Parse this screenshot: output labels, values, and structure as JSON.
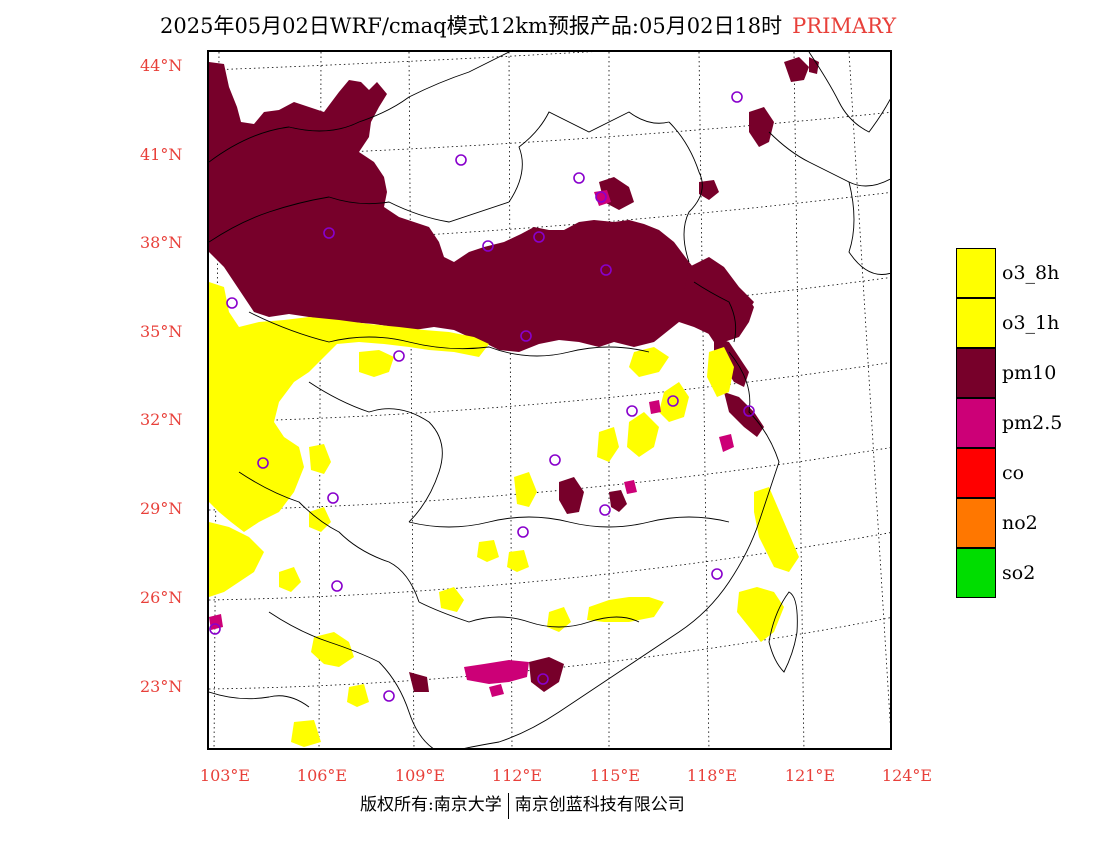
{
  "title": {
    "main": "2025年05月02日WRF/cmaq模式12km预报产品:05月02日18时",
    "tag": "PRIMARY"
  },
  "colors": {
    "o3_8h": "#ffff00",
    "o3_1h": "#ffff00",
    "pm10": "#77002a",
    "pm2_5": "#cc0077",
    "co": "#ff0000",
    "no2": "#ff7700",
    "so2": "#00dd00",
    "label_red": "#e8403a",
    "station": "#8800cc"
  },
  "axes": {
    "lat_labels": [
      "44°N",
      "41°N",
      "38°N",
      "35°N",
      "32°N",
      "29°N",
      "26°N",
      "23°N"
    ],
    "lon_labels": [
      "103°E",
      "106°E",
      "109°E",
      "112°E",
      "115°E",
      "118°E",
      "121°E",
      "124°E"
    ]
  },
  "legend": [
    {
      "label": "o3_8h",
      "color": "#ffff00"
    },
    {
      "label": "o3_1h",
      "color": "#ffff00"
    },
    {
      "label": "pm10",
      "color": "#77002a"
    },
    {
      "label": "pm2.5",
      "color": "#cc0077"
    },
    {
      "label": "co",
      "color": "#ff0000"
    },
    {
      "label": "no2",
      "color": "#ff7700"
    },
    {
      "label": "so2",
      "color": "#00dd00"
    }
  ],
  "footer": {
    "left": "版权所有:南京大学",
    "right": "南京创蓝科技有限公司"
  }
}
